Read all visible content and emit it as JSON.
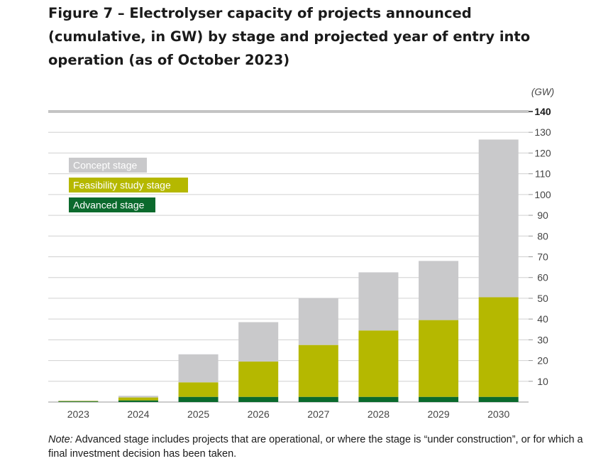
{
  "title": "Figure 7 – Electrolyser capacity of projects announced (cumulative, in GW) by stage and projected year of entry into operation (as of October 2023)",
  "note_label": "Note:",
  "note_text": " Advanced stage includes projects that are operational, or where the stage is “under construction”, or for which a final investment decision has been taken.",
  "colors": {
    "advanced": "#0b6a2d",
    "feasibility": "#b5b800",
    "concept": "#c9c9cb",
    "grid": "#d0d0d0",
    "axis_top": "#c4c4c4"
  },
  "chart_data": {
    "type": "bar",
    "stacked": true,
    "unit_label": "(GW)",
    "categories": [
      "2023",
      "2024",
      "2025",
      "2026",
      "2027",
      "2028",
      "2029",
      "2030"
    ],
    "series": [
      {
        "name": "Advanced stage",
        "color": "#0b6a2d",
        "values": [
          0.3,
          0.8,
          2.5,
          2.5,
          2.5,
          2.5,
          2.5,
          2.5
        ]
      },
      {
        "name": "Feasibility study stage",
        "color": "#b5b800",
        "values": [
          0.2,
          1.4,
          7,
          17,
          25,
          32,
          37,
          48
        ]
      },
      {
        "name": "Concept stage",
        "color": "#c9c9cb",
        "values": [
          0.2,
          0.8,
          13.5,
          19,
          22.5,
          28,
          28.5,
          76
        ]
      }
    ],
    "ylim": [
      0,
      140
    ],
    "yticks": [
      10,
      20,
      30,
      40,
      50,
      60,
      70,
      80,
      90,
      100,
      110,
      120,
      130,
      140
    ],
    "grid": true,
    "y_axis_side": "right",
    "legend_position": "top-left"
  }
}
